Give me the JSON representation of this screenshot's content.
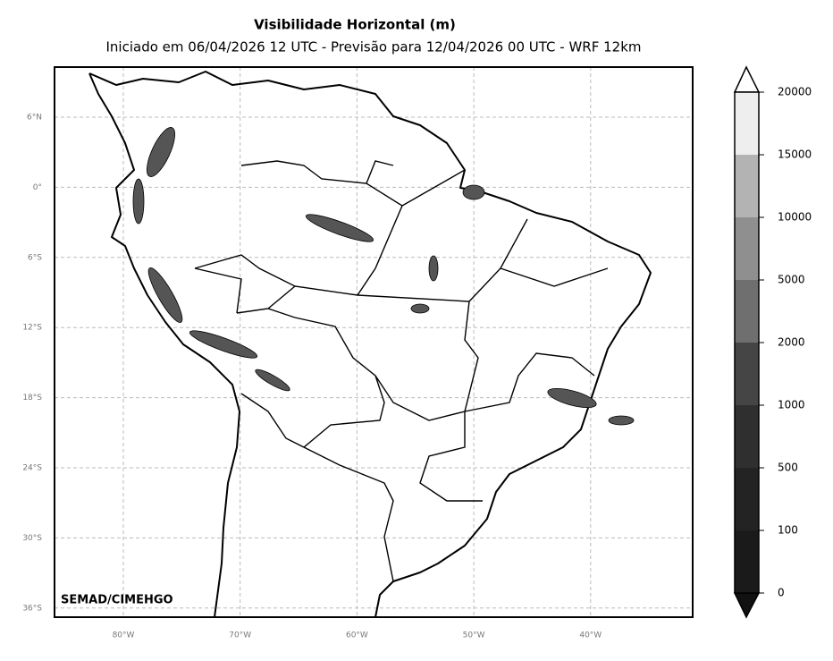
{
  "map": {
    "title": "Visibilidade Horizontal (m)",
    "subtitle": "Iniciado em 06/04/2026 12 UTC - Previsão para 12/04/2026 00 UTC - WRF 12km",
    "lat_labels": [
      "6°N",
      "0°",
      "6°S",
      "12°S",
      "18°S",
      "24°S",
      "30°S",
      "36°S"
    ],
    "lon_labels": [
      "80°W",
      "70°W",
      "60°W",
      "50°W",
      "40°W"
    ],
    "credit": "SEMAD/CIMEHGO"
  },
  "colorbar": {
    "ticks": [
      0,
      100,
      500,
      1000,
      2000,
      5000,
      10000,
      15000,
      20000
    ]
  }
}
